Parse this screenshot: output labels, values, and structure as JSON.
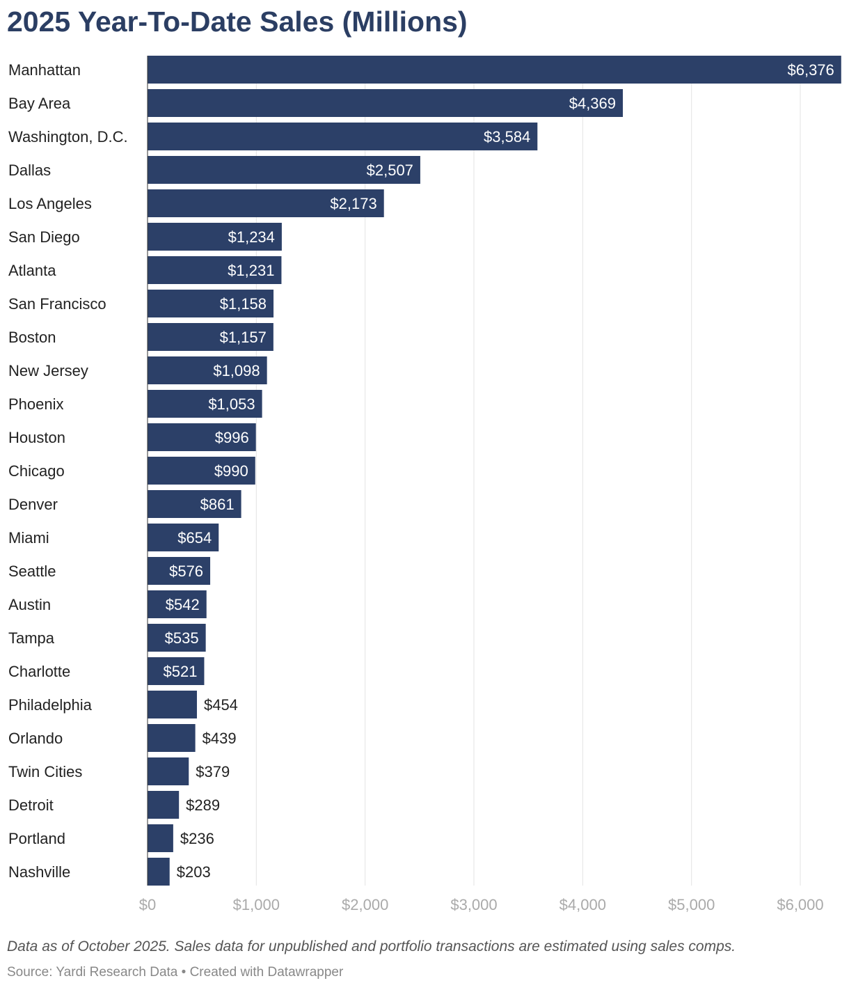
{
  "chart_data": {
    "type": "bar",
    "orientation": "horizontal",
    "title": "2025 Year-To-Date Sales (Millions)",
    "categories": [
      "Manhattan",
      "Bay Area",
      "Washington, D.C.",
      "Dallas",
      "Los Angeles",
      "San Diego",
      "Atlanta",
      "San Francisco",
      "Boston",
      "New Jersey",
      "Phoenix",
      "Houston",
      "Chicago",
      "Denver",
      "Miami",
      "Seattle",
      "Austin",
      "Tampa",
      "Charlotte",
      "Philadelphia",
      "Orlando",
      "Twin Cities",
      "Detroit",
      "Portland",
      "Nashville"
    ],
    "values": [
      6376,
      4369,
      3584,
      2507,
      2173,
      1234,
      1231,
      1158,
      1157,
      1098,
      1053,
      996,
      990,
      861,
      654,
      576,
      542,
      535,
      521,
      454,
      439,
      379,
      289,
      236,
      203
    ],
    "data_labels": [
      "$6,376",
      "$4,369",
      "$3,584",
      "$2,507",
      "$2,173",
      "$1,234",
      "$1,231",
      "$1,158",
      "$1,157",
      "$1,098",
      "$1,053",
      "$996",
      "$990",
      "$861",
      "$654",
      "$576",
      "$542",
      "$535",
      "$521",
      "$454",
      "$439",
      "$379",
      "$289",
      "$236",
      "$203"
    ],
    "xlim": [
      0,
      6376
    ],
    "x_ticks": [
      0,
      1000,
      2000,
      3000,
      4000,
      5000,
      6000
    ],
    "x_tick_labels": [
      "$0",
      "$1,000",
      "$2,000",
      "$3,000",
      "$4,000",
      "$5,000",
      "$6,000"
    ],
    "grid": true,
    "bar_color": "#2c4068",
    "xlabel": "",
    "ylabel": ""
  },
  "footer": {
    "note": "Data as of October 2025. Sales data for unpublished and portfolio transactions are estimated using sales comps.",
    "source": "Source: Yardi Research Data • Created with Datawrapper"
  }
}
